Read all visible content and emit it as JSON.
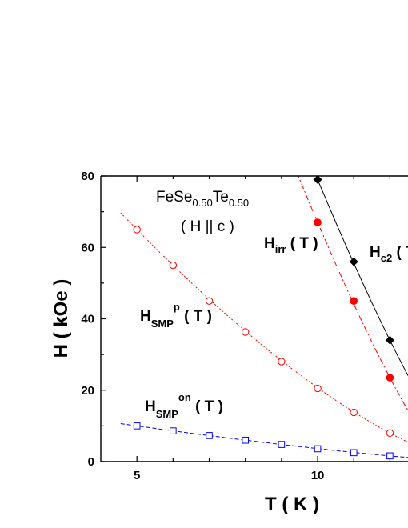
{
  "chart_data": {
    "type": "scatter",
    "xlabel": "T ( K )",
    "ylabel": "H ( kOe )",
    "xlim": [
      4.0,
      12.5
    ],
    "ylim": [
      0,
      80
    ],
    "x_ticks": [
      5,
      10
    ],
    "y_ticks": [
      0,
      20,
      40,
      60,
      80
    ],
    "annotations": {
      "sample": {
        "base": "FeSe",
        "sub1": "0.50",
        "mid": "Te",
        "sub2": "0.50"
      },
      "field_dir": "( H || c )",
      "hirr": {
        "base": "H",
        "sub": "irr",
        "tail": " ( T )"
      },
      "hc2": {
        "base": "H",
        "sub": "c2",
        "tail": " ( T )"
      },
      "hsmp_p": {
        "base": "H",
        "sub": "SMP",
        "sup": "p",
        "tail": " ( T )"
      },
      "hsmp_on": {
        "base": "H",
        "sub": "SMP",
        "sup": "on",
        "tail": " ( T )"
      }
    },
    "series": [
      {
        "key": "hc2",
        "color": "#000000",
        "marker": "filled-diamond",
        "line": "solid",
        "x": [
          10,
          11,
          12
        ],
        "y": [
          79,
          56,
          34
        ],
        "fit_x": [
          10,
          12.5
        ],
        "fit_power": 1.25
      },
      {
        "key": "hirr",
        "color": "#ff0000",
        "marker": "filled-circle",
        "line": "dash-dot",
        "x": [
          10,
          11,
          12
        ],
        "y": [
          67,
          45,
          23.5
        ],
        "fit_x": [
          9.3,
          12.5
        ],
        "fit_power": 1.25
      },
      {
        "key": "hsmp_p",
        "color": "#ff0000",
        "marker": "open-circle",
        "line": "dotted",
        "x": [
          5,
          6,
          7,
          8,
          9,
          10,
          11,
          12
        ],
        "y": [
          65,
          55,
          45,
          36.3,
          28,
          20.5,
          13.8,
          8
        ],
        "fit_x": [
          4.55,
          12.5
        ],
        "fit_power": 1.45
      },
      {
        "key": "hsmp_on",
        "color": "#0000ff",
        "marker": "open-square",
        "line": "dashed",
        "x": [
          5,
          6,
          7,
          8,
          9,
          10,
          11,
          12
        ],
        "y": [
          10,
          8.6,
          7.3,
          6,
          4.8,
          3.6,
          2.5,
          1.6
        ],
        "fit_x": [
          4.55,
          12.5
        ],
        "fit_power": 1.3
      }
    ]
  }
}
